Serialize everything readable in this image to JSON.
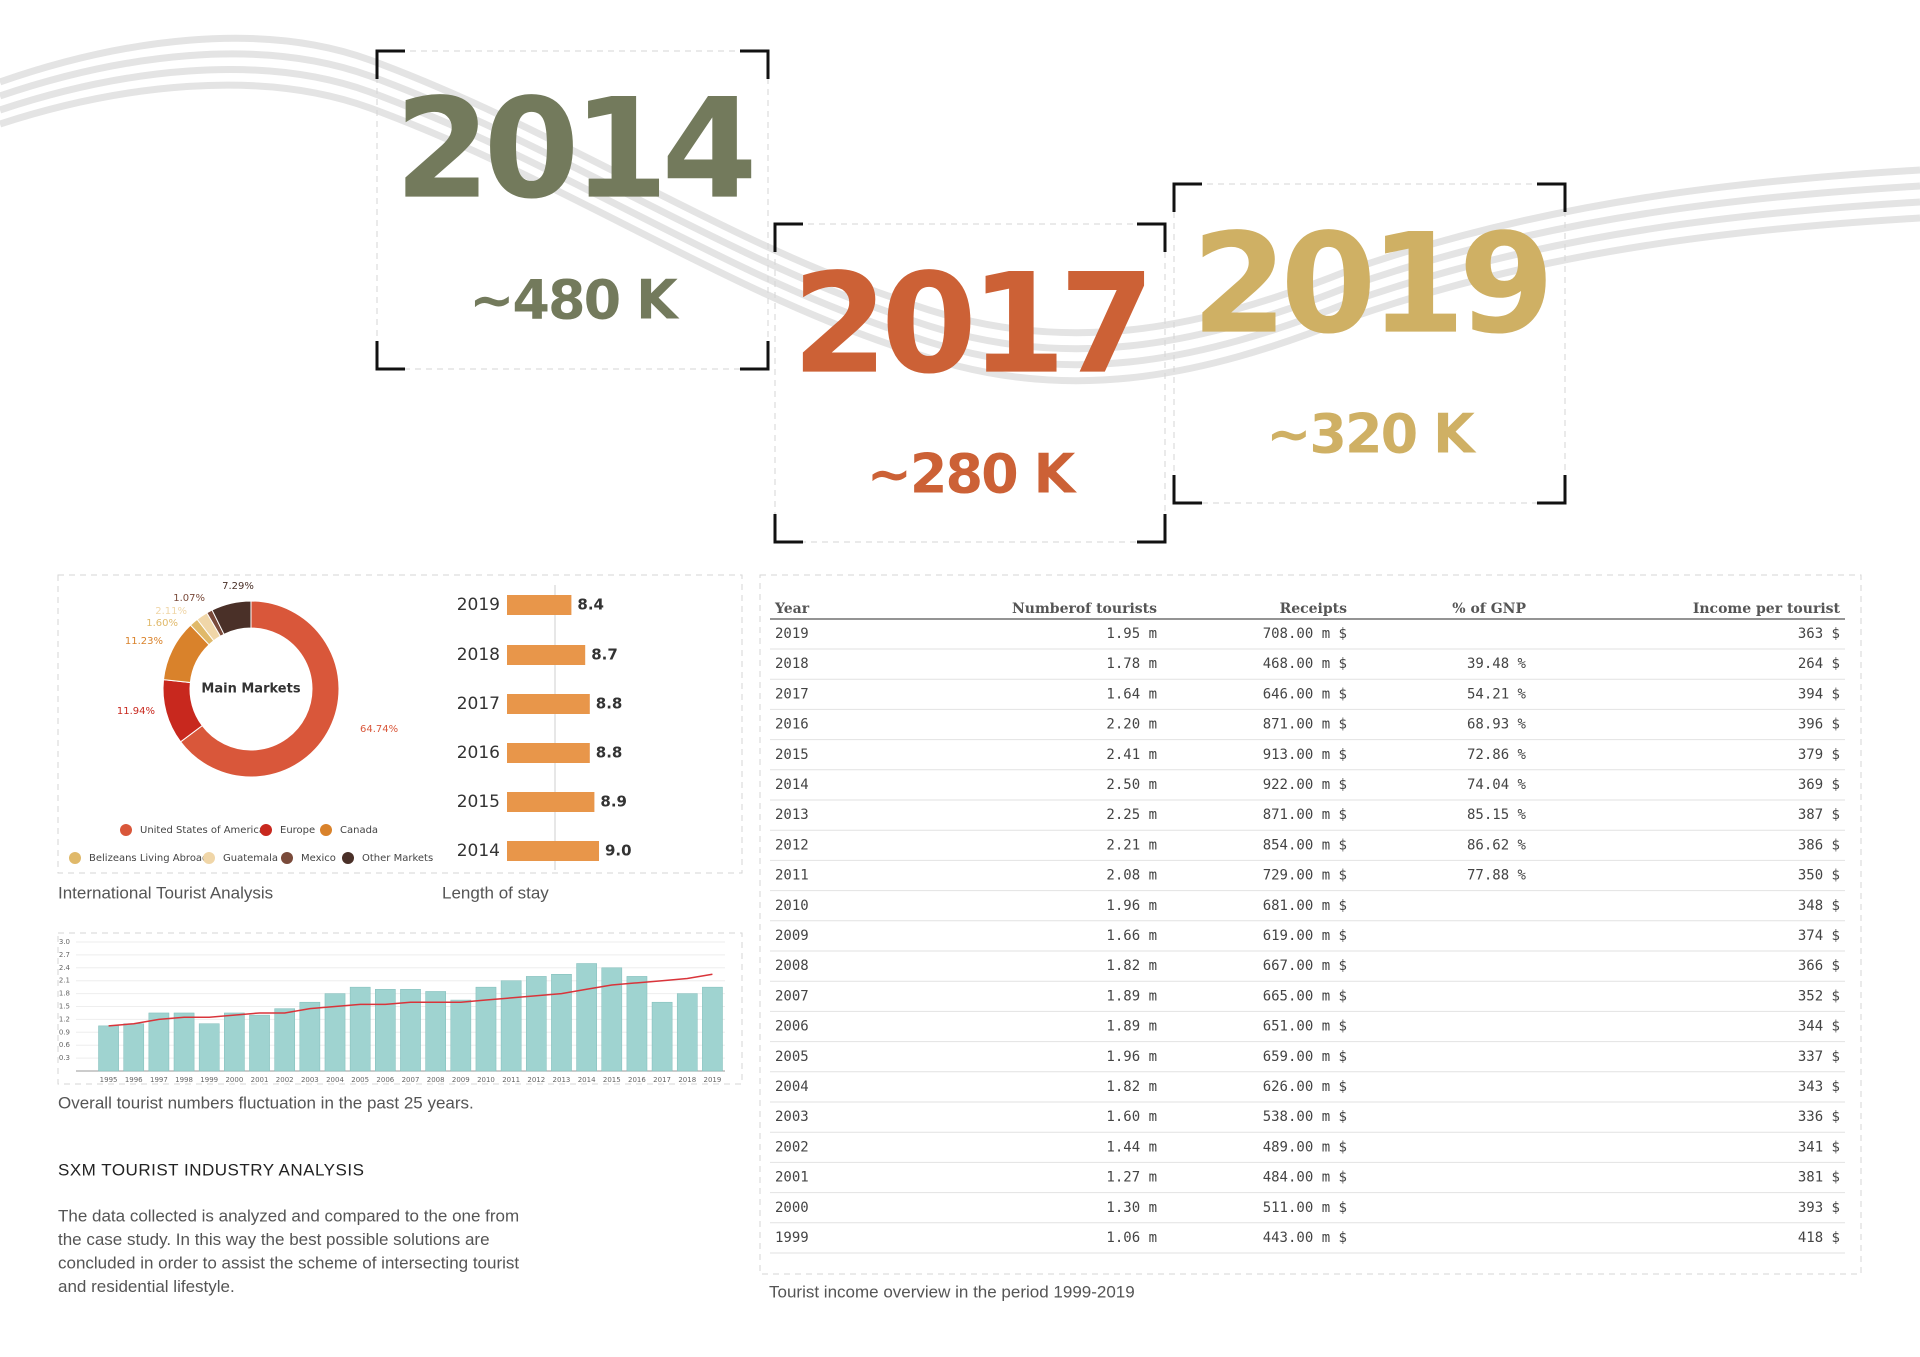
{
  "highlights": [
    {
      "year": "2014",
      "tourists": "~480 K",
      "color": "#737a5c"
    },
    {
      "year": "2017",
      "tourists": "~280 K",
      "color": "#cc6136"
    },
    {
      "year": "2019",
      "tourists": "~320 K",
      "color": "#cfb064"
    }
  ],
  "chart_data": [
    {
      "type": "pie",
      "center_label": "Main Markets",
      "caption": "International Tourist Analysis",
      "categories": [
        "United States of America",
        "Europe",
        "Canada",
        "Belizeans Living Abroad",
        "Guatemala",
        "Mexico",
        "Other Markets"
      ],
      "values": [
        64.74,
        11.94,
        11.23,
        1.6,
        2.11,
        1.07,
        7.29
      ],
      "value_labels": [
        "64.74%",
        "11.94%",
        "11.23%",
        "1.60%",
        "2.11%",
        "1.07%",
        "7.29%"
      ],
      "colors": [
        "#d9573a",
        "#c8281e",
        "#d9822b",
        "#e0b96a",
        "#f0d6a8",
        "#7a4a3a",
        "#4a3028"
      ]
    },
    {
      "type": "hbar",
      "caption": "Length of stay",
      "categories": [
        "2019",
        "2018",
        "2017",
        "2016",
        "2015",
        "2014"
      ],
      "values": [
        8.4,
        8.7,
        8.8,
        8.8,
        8.9,
        9.0
      ],
      "value_labels": [
        "8.4",
        "8.7",
        "8.8",
        "8.8",
        "8.9",
        "9.0"
      ],
      "color": "#e8964a",
      "xlim": [
        7,
        9
      ]
    },
    {
      "type": "bar",
      "caption": "Overall tourist numbers fluctuation in the past 25 years.",
      "categories": [
        "1995",
        "1996",
        "1997",
        "1998",
        "1999",
        "2000",
        "2001",
        "2002",
        "2003",
        "2004",
        "2005",
        "2006",
        "2007",
        "2008",
        "2009",
        "2010",
        "2011",
        "2012",
        "2013",
        "2014",
        "2015",
        "2016",
        "2017",
        "2018",
        "2019"
      ],
      "series": [
        {
          "type": "bar",
          "color": "#9fd3d0",
          "values": [
            1.05,
            1.1,
            1.35,
            1.35,
            1.1,
            1.35,
            1.3,
            1.45,
            1.6,
            1.8,
            1.95,
            1.9,
            1.9,
            1.85,
            1.65,
            1.95,
            2.1,
            2.2,
            2.25,
            2.5,
            2.4,
            2.2,
            1.6,
            1.8,
            1.95
          ]
        },
        {
          "type": "line",
          "color": "#d9343a",
          "values": [
            1.05,
            1.1,
            1.2,
            1.25,
            1.25,
            1.3,
            1.35,
            1.35,
            1.45,
            1.5,
            1.55,
            1.55,
            1.6,
            1.6,
            1.6,
            1.65,
            1.7,
            1.75,
            1.8,
            1.9,
            2.0,
            2.05,
            2.1,
            2.15,
            2.25
          ]
        }
      ],
      "ylim": [
        0,
        3
      ],
      "yticks": [
        0.3,
        0.6,
        0.9,
        1.2,
        1.5,
        1.8,
        2.1,
        2.4,
        2.7,
        {
          "value": 3,
          "label": "3.0"
        }
      ],
      "grid": true
    }
  ],
  "section": {
    "title": "SXM TOURIST INDUSTRY ANALYSIS",
    "paragraph": [
      "The data collected is analyzed and compared to the one from",
      "the case study. In this way the best possible solutions are",
      "concluded in order to assist the scheme of intersecting tourist",
      "and residential lifestyle."
    ]
  },
  "table": {
    "caption": "Tourist income overview in the period 1999-2019",
    "columns": [
      "Year",
      "Numberof tourists",
      "Receipts",
      "% of GNP",
      "Income per tourist"
    ],
    "rows": [
      [
        "2019",
        "1.95 m",
        "708.00 m $",
        null,
        "363 $"
      ],
      [
        "2018",
        "1.78 m",
        "468.00 m $",
        "39.48 %",
        "264 $"
      ],
      [
        "2017",
        "1.64 m",
        "646.00 m $",
        "54.21 %",
        "394 $"
      ],
      [
        "2016",
        "2.20 m",
        "871.00 m $",
        "68.93 %",
        "396 $"
      ],
      [
        "2015",
        "2.41 m",
        "913.00 m $",
        "72.86 %",
        "379 $"
      ],
      [
        "2014",
        "2.50 m",
        "922.00 m $",
        "74.04 %",
        "369 $"
      ],
      [
        "2013",
        "2.25 m",
        "871.00 m $",
        "85.15 %",
        "387 $"
      ],
      [
        "2012",
        "2.21 m",
        "854.00 m $",
        "86.62 %",
        "386 $"
      ],
      [
        "2011",
        "2.08 m",
        "729.00 m $",
        "77.88 %",
        "350 $"
      ],
      [
        "2010",
        "1.96 m",
        "681.00 m $",
        null,
        "348 $"
      ],
      [
        "2009",
        "1.66 m",
        "619.00 m $",
        null,
        "374 $"
      ],
      [
        "2008",
        "1.82 m",
        "667.00 m $",
        null,
        "366 $"
      ],
      [
        "2007",
        "1.89 m",
        "665.00 m $",
        null,
        "352 $"
      ],
      [
        "2006",
        "1.89 m",
        "651.00 m $",
        null,
        "344 $"
      ],
      [
        "2005",
        "1.96 m",
        "659.00 m $",
        null,
        "337 $"
      ],
      [
        "2004",
        "1.82 m",
        "626.00 m $",
        null,
        "343 $"
      ],
      [
        "2003",
        "1.60 m",
        "538.00 m $",
        null,
        "336 $"
      ],
      [
        "2002",
        "1.44 m",
        "489.00 m $",
        null,
        "341 $"
      ],
      [
        "2001",
        "1.27 m",
        "484.00 m $",
        null,
        "381 $"
      ],
      [
        "2000",
        "1.30 m",
        "511.00 m $",
        null,
        "393 $"
      ],
      [
        "1999",
        "1.06 m",
        "443.00 m $",
        null,
        "418 $"
      ]
    ]
  }
}
